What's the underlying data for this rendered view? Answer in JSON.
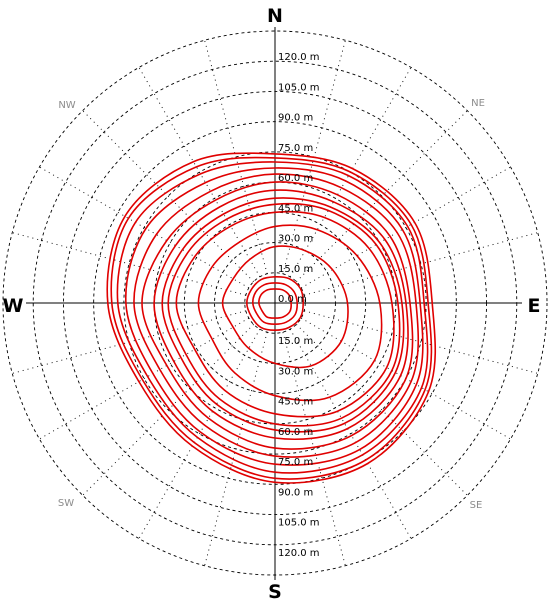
{
  "chart_data": {
    "type": "polar-line",
    "title": "",
    "directions": {
      "cardinal": {
        "N": "N",
        "E": "E",
        "S": "S",
        "W": "W"
      },
      "intercardinal": {
        "NE": "NE",
        "SE": "SE",
        "SW": "SW",
        "NW": "NW"
      }
    },
    "radial_axis": {
      "unit": "m",
      "range": [
        0,
        135
      ],
      "grid_step": 15,
      "tick_labels": [
        "0.0 m",
        "15.0 m",
        "30.0 m",
        "45.0 m",
        "60.0 m",
        "75.0 m",
        "90.0 m",
        "105.0 m",
        "120.0 m"
      ]
    },
    "radial_grid_lines": 24,
    "grid": true,
    "series_color": "#e00000",
    "series": [
      {
        "angles_deg": [
          0,
          30,
          60,
          90,
          120,
          150,
          180,
          210,
          240,
          270,
          300,
          330
        ],
        "radii_m": [
          7,
          7.5,
          8,
          8,
          8.5,
          8,
          7.5,
          8,
          7.5,
          8,
          8,
          7.5
        ]
      },
      {
        "angles_deg": [
          0,
          30,
          60,
          90,
          120,
          150,
          180,
          210,
          240,
          270,
          300,
          330
        ],
        "radii_m": [
          10,
          10.5,
          11,
          11,
          11.5,
          11,
          10.5,
          11,
          10.5,
          11,
          11,
          10.5
        ]
      },
      {
        "angles_deg": [
          0,
          30,
          60,
          90,
          120,
          150,
          180,
          210,
          240,
          270,
          300,
          330
        ],
        "radii_m": [
          13,
          14,
          14.5,
          14,
          14.5,
          14,
          13.5,
          14,
          13.5,
          14,
          13.5,
          13.5
        ]
      },
      {
        "angles_deg": [
          0,
          30,
          60,
          90,
          120,
          150,
          180,
          210,
          240,
          270,
          300,
          330
        ],
        "radii_m": [
          28,
          30,
          33,
          36,
          38,
          36,
          30,
          26,
          24,
          26,
          24,
          25
        ]
      },
      {
        "angles_deg": [
          0,
          30,
          60,
          90,
          120,
          150,
          180,
          210,
          240,
          270,
          300,
          330
        ],
        "radii_m": [
          38,
          42,
          47,
          52,
          57,
          54,
          46,
          40,
          36,
          38,
          36,
          35
        ]
      },
      {
        "angles_deg": [
          0,
          30,
          60,
          90,
          120,
          150,
          180,
          210,
          240,
          270,
          300,
          330
        ],
        "radii_m": [
          45,
          49,
          54,
          58,
          64,
          62,
          55,
          50,
          46,
          49,
          46,
          44
        ]
      },
      {
        "angles_deg": [
          0,
          30,
          60,
          90,
          120,
          150,
          180,
          210,
          240,
          270,
          300,
          330
        ],
        "radii_m": [
          49,
          53,
          58,
          61,
          67,
          66,
          60,
          55,
          51,
          53,
          50,
          48
        ]
      },
      {
        "angles_deg": [
          0,
          30,
          60,
          90,
          120,
          150,
          180,
          210,
          240,
          270,
          300,
          330
        ],
        "radii_m": [
          52,
          55,
          60,
          63,
          69,
          69,
          63,
          58,
          54,
          56,
          53,
          51
        ]
      },
      {
        "angles_deg": [
          0,
          30,
          60,
          90,
          120,
          150,
          180,
          210,
          240,
          270,
          300,
          330
        ],
        "radii_m": [
          56,
          58,
          63,
          65,
          72,
          72,
          67,
          62,
          58,
          60,
          57,
          55
        ]
      },
      {
        "angles_deg": [
          0,
          30,
          60,
          90,
          120,
          150,
          180,
          210,
          240,
          270,
          300,
          330
        ],
        "radii_m": [
          60,
          62,
          66,
          67,
          75,
          76,
          72,
          66,
          62,
          66,
          62,
          59
        ]
      },
      {
        "angles_deg": [
          0,
          30,
          60,
          90,
          120,
          150,
          180,
          210,
          240,
          270,
          300,
          330
        ],
        "radii_m": [
          64,
          66,
          70,
          70,
          78,
          80,
          76,
          70,
          66,
          70,
          68,
          64
        ]
      },
      {
        "angles_deg": [
          0,
          30,
          60,
          90,
          120,
          150,
          180,
          210,
          240,
          270,
          300,
          330
        ],
        "radii_m": [
          67,
          70,
          73,
          72,
          81,
          84,
          80,
          74,
          70,
          74,
          74,
          69
        ]
      },
      {
        "angles_deg": [
          0,
          30,
          60,
          90,
          120,
          150,
          180,
          210,
          240,
          270,
          300,
          330
        ],
        "radii_m": [
          70,
          73,
          76,
          74,
          84,
          87,
          84,
          77,
          73,
          78,
          80,
          74
        ]
      },
      {
        "angles_deg": [
          0,
          30,
          60,
          90,
          120,
          150,
          180,
          210,
          240,
          270,
          300,
          330
        ],
        "radii_m": [
          72,
          75,
          78,
          76,
          86,
          90,
          87,
          80,
          76,
          81,
          84,
          78
        ]
      },
      {
        "angles_deg": [
          0,
          30,
          60,
          90,
          120,
          150,
          180,
          210,
          240,
          270,
          300,
          330
        ],
        "radii_m": [
          74,
          77,
          80,
          78,
          88,
          92,
          89,
          82,
          78,
          83,
          86,
          81
        ]
      }
    ]
  }
}
